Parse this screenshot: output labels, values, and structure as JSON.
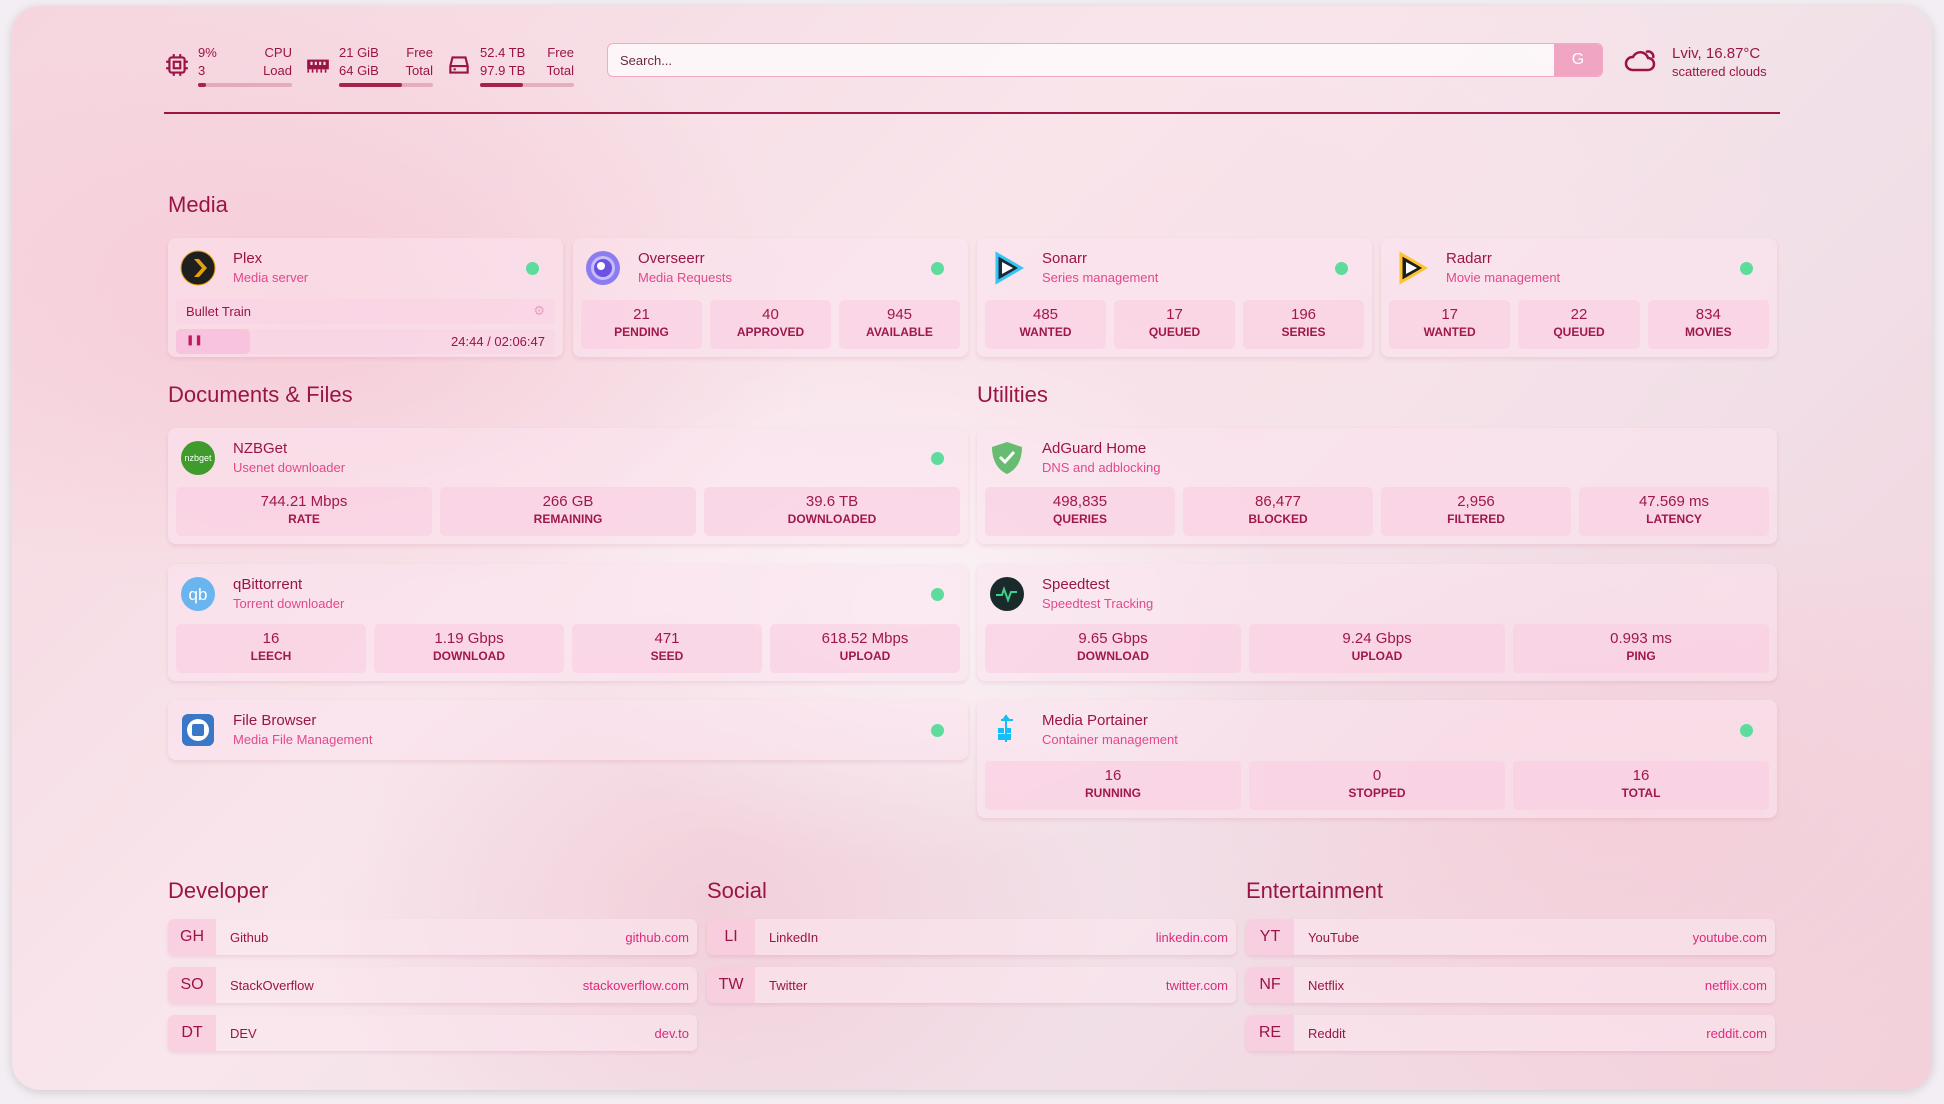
{
  "header": {
    "cpu": {
      "usage": "9%",
      "load": "3",
      "label_top": "CPU",
      "label_bottom": "Load",
      "fill": 0.09
    },
    "memory": {
      "free": "21 GiB",
      "total": "64 GiB",
      "label_top": "Free",
      "label_bottom": "Total",
      "fill": 0.67
    },
    "disk": {
      "free": "52.4 TB",
      "total": "97.9 TB",
      "label_top": "Free",
      "label_bottom": "Total",
      "fill": 0.46
    },
    "search": {
      "placeholder": "Search...",
      "button": "G"
    },
    "weather": {
      "location_temp": "Lviv, 16.87°C",
      "condition": "scattered clouds",
      "icon": "cloud-sun-icon"
    }
  },
  "colors": {
    "accent": "#9b1446",
    "link": "#e0287d",
    "status_up": "#5ddc9c"
  },
  "sections": {
    "media": "Media",
    "documents": "Documents & Files",
    "utilities": "Utilities",
    "developer": "Developer",
    "social": "Social",
    "entertainment": "Entertainment"
  },
  "services": [
    {
      "id": "plex",
      "name": "Plex",
      "desc": "Media server",
      "icon": "plex",
      "status": "up",
      "now_playing": {
        "title": "Bullet Train",
        "time": "24:44 / 02:06:47",
        "progress": 0.195,
        "state": "paused"
      }
    },
    {
      "id": "overseerr",
      "name": "Overseerr",
      "desc": "Media Requests",
      "icon": "overseerr",
      "status": "up",
      "stats": [
        {
          "v": "21",
          "k": "Pending"
        },
        {
          "v": "40",
          "k": "Approved"
        },
        {
          "v": "945",
          "k": "Available"
        }
      ]
    },
    {
      "id": "sonarr",
      "name": "Sonarr",
      "desc": "Series management",
      "icon": "sonarr",
      "status": "up",
      "stats": [
        {
          "v": "485",
          "k": "Wanted"
        },
        {
          "v": "17",
          "k": "Queued"
        },
        {
          "v": "196",
          "k": "Series"
        }
      ]
    },
    {
      "id": "radarr",
      "name": "Radarr",
      "desc": "Movie management",
      "icon": "radarr",
      "status": "up",
      "stats": [
        {
          "v": "17",
          "k": "Wanted"
        },
        {
          "v": "22",
          "k": "Queued"
        },
        {
          "v": "834",
          "k": "Movies"
        }
      ]
    },
    {
      "id": "nzbget",
      "name": "NZBGet",
      "desc": "Usenet downloader",
      "icon": "nzbget",
      "status": "up",
      "stats": [
        {
          "v": "744.21 Mbps",
          "k": "Rate"
        },
        {
          "v": "266 GB",
          "k": "Remaining"
        },
        {
          "v": "39.6 TB",
          "k": "Downloaded"
        }
      ]
    },
    {
      "id": "qbittorrent",
      "name": "qBittorrent",
      "desc": "Torrent downloader",
      "icon": "qbittorrent",
      "status": "up",
      "stats": [
        {
          "v": "16",
          "k": "Leech"
        },
        {
          "v": "1.19 Gbps",
          "k": "Download"
        },
        {
          "v": "471",
          "k": "Seed"
        },
        {
          "v": "618.52 Mbps",
          "k": "Upload"
        }
      ]
    },
    {
      "id": "filebrowser",
      "name": "File Browser",
      "desc": "Media File Management",
      "icon": "filebrowser",
      "status": "up"
    },
    {
      "id": "adguard",
      "name": "AdGuard Home",
      "desc": "DNS and adblocking",
      "icon": "adguard",
      "stats": [
        {
          "v": "498,835",
          "k": "Queries"
        },
        {
          "v": "86,477",
          "k": "Blocked"
        },
        {
          "v": "2,956",
          "k": "Filtered"
        },
        {
          "v": "47.569 ms",
          "k": "Latency"
        }
      ]
    },
    {
      "id": "speedtest",
      "name": "Speedtest",
      "desc": "Speedtest Tracking",
      "icon": "speedtest",
      "stats": [
        {
          "v": "9.65 Gbps",
          "k": "Download"
        },
        {
          "v": "9.24 Gbps",
          "k": "Upload"
        },
        {
          "v": "0.993 ms",
          "k": "Ping"
        }
      ]
    },
    {
      "id": "portainer",
      "name": "Media Portainer",
      "desc": "Container management",
      "icon": "portainer",
      "status": "up",
      "stats": [
        {
          "v": "16",
          "k": "Running"
        },
        {
          "v": "0",
          "k": "Stopped"
        },
        {
          "v": "16",
          "k": "Total"
        }
      ]
    }
  ],
  "bookmarks": [
    [
      {
        "abbr": "GH",
        "name": "Github",
        "url": "github.com"
      },
      {
        "abbr": "SO",
        "name": "StackOverflow",
        "url": "stackoverflow.com"
      },
      {
        "abbr": "DT",
        "name": "DEV",
        "url": "dev.to"
      }
    ],
    [
      {
        "abbr": "LI",
        "name": "LinkedIn",
        "url": "linkedin.com"
      },
      {
        "abbr": "TW",
        "name": "Twitter",
        "url": "twitter.com"
      }
    ],
    [
      {
        "abbr": "YT",
        "name": "YouTube",
        "url": "youtube.com"
      },
      {
        "abbr": "NF",
        "name": "Netflix",
        "url": "netflix.com"
      },
      {
        "abbr": "RE",
        "name": "Reddit",
        "url": "reddit.com"
      }
    ]
  ]
}
